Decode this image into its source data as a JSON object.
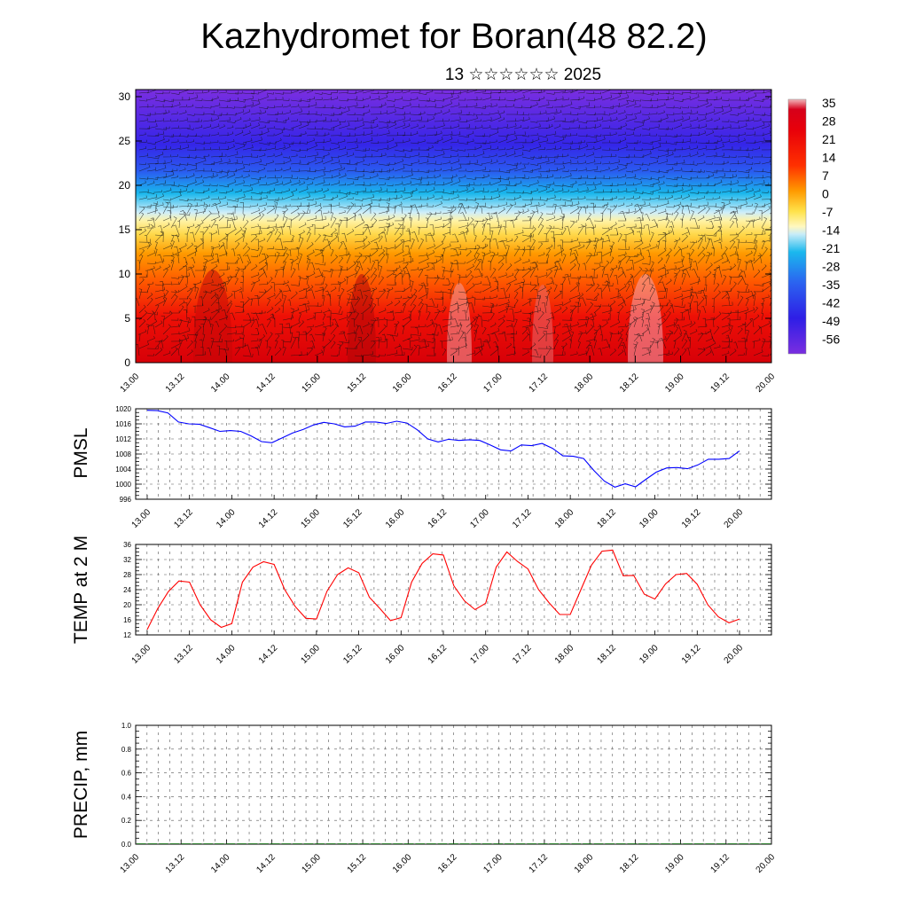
{
  "header": {
    "title": "Kazhydromet for Boran(48 82.2)",
    "subtitle": "13 ☆☆☆☆☆☆ 2025"
  },
  "chart_data": [
    {
      "type": "heatmap",
      "name": "wind-temperature-profile",
      "title": "",
      "xlabel": "",
      "ylabel": "",
      "xticks": [
        "13.00",
        "13.12",
        "14.00",
        "14.12",
        "15.00",
        "15.12",
        "16.00",
        "16.12",
        "17.00",
        "17.12",
        "18.00",
        "18.12",
        "19.00",
        "19.12",
        "20.00"
      ],
      "yticks": [
        0,
        5,
        10,
        15,
        20,
        25,
        30
      ],
      "ylim": [
        0,
        30.8
      ],
      "colorbar": {
        "labels": [
          "35",
          "28",
          "21",
          "14",
          "7",
          "0",
          "-7",
          "-14",
          "-21",
          "-28",
          "-35",
          "-42",
          "-49",
          "-56"
        ],
        "range": [
          -63,
          39
        ]
      },
      "colors": {
        "hot": "#e8000a",
        "warm": "#ff9a00",
        "neutral": "#fff070",
        "cool": "#19b7ec",
        "cold": "#3030ee",
        "coldest": "#7a2ee0"
      }
    },
    {
      "type": "line",
      "name": "pmsl",
      "ylabel": "PMSL",
      "ylim": [
        996,
        1020
      ],
      "yticks": [
        996,
        1000,
        1004,
        1008,
        1012,
        1016,
        1020
      ],
      "xticks": [
        "13.00",
        "13.12",
        "14.00",
        "14.12",
        "15.00",
        "15.12",
        "16.00",
        "16.12",
        "17.00",
        "17.12",
        "18.00",
        "18.12",
        "19.00",
        "19.12",
        "20.00"
      ],
      "color": "#0000ff",
      "values": [
        1019.6,
        1019.5,
        1018.9,
        1016.5,
        1016.0,
        1015.9,
        1015.0,
        1014.0,
        1014.2,
        1014.0,
        1012.8,
        1011.3,
        1011.0,
        1012.3,
        1013.6,
        1014.5,
        1015.7,
        1016.4,
        1016.0,
        1015.2,
        1015.4,
        1016.5,
        1016.5,
        1016.1,
        1016.7,
        1016.2,
        1014.4,
        1012.0,
        1011.2,
        1011.9,
        1011.6,
        1011.8,
        1011.6,
        1010.4,
        1009.1,
        1008.8,
        1010.4,
        1010.2,
        1010.8,
        1009.5,
        1007.5,
        1007.4,
        1006.8,
        1003.6,
        1000.8,
        999.2,
        1000.1,
        999.3,
        1001.3,
        1003.2,
        1004.3,
        1004.4,
        1004.1,
        1005.1,
        1006.6,
        1006.6,
        1006.8,
        1008.8
      ]
    },
    {
      "type": "line",
      "name": "temp-2m",
      "ylabel": "TEMP at 2 M",
      "ylim": [
        12,
        36
      ],
      "yticks": [
        12,
        16,
        20,
        24,
        28,
        32,
        36
      ],
      "xticks": [
        "13.00",
        "13.12",
        "14.00",
        "14.12",
        "15.00",
        "15.12",
        "16.00",
        "16.12",
        "17.00",
        "17.12",
        "18.00",
        "18.12",
        "19.00",
        "19.12",
        "20.00"
      ],
      "color": "#ff0000",
      "values": [
        13.4,
        19.0,
        23.5,
        26.3,
        26.0,
        20.0,
        16.0,
        14.0,
        15.0,
        26.0,
        30.0,
        31.4,
        30.7,
        24.0,
        19.5,
        16.4,
        16.2,
        23.6,
        28.0,
        29.8,
        28.5,
        22.0,
        19.0,
        15.8,
        16.6,
        26.0,
        31.0,
        33.5,
        33.2,
        25.0,
        21.0,
        18.7,
        20.4,
        30.0,
        34.0,
        31.5,
        29.5,
        24.0,
        20.5,
        17.4,
        17.4,
        24.0,
        30.5,
        34.2,
        34.5,
        27.7,
        27.8,
        22.8,
        21.5,
        25.5,
        28.0,
        28.3,
        25.4,
        20.0,
        16.8,
        15.2,
        16.2
      ]
    },
    {
      "type": "bar",
      "name": "precip",
      "ylabel": "PRECIP, mm",
      "ylim": [
        0,
        1.0
      ],
      "yticks": [
        "0.0",
        "0.2",
        "0.4",
        "0.6",
        "0.8",
        "1.0"
      ],
      "xticks": [
        "13.00",
        "13.12",
        "14.00",
        "14.12",
        "15.00",
        "15.12",
        "16.00",
        "16.12",
        "17.00",
        "17.12",
        "18.00",
        "18.12",
        "19.00",
        "19.12",
        "20.00"
      ],
      "color": "#006400",
      "values": [
        0,
        0,
        0,
        0,
        0,
        0,
        0,
        0,
        0,
        0,
        0,
        0,
        0,
        0,
        0,
        0,
        0,
        0,
        0,
        0,
        0,
        0,
        0,
        0,
        0,
        0,
        0,
        0,
        0,
        0,
        0,
        0,
        0,
        0,
        0,
        0,
        0,
        0,
        0,
        0,
        0,
        0,
        0,
        0,
        0,
        0,
        0,
        0,
        0,
        0,
        0,
        0,
        0,
        0,
        0,
        0,
        0
      ]
    }
  ]
}
